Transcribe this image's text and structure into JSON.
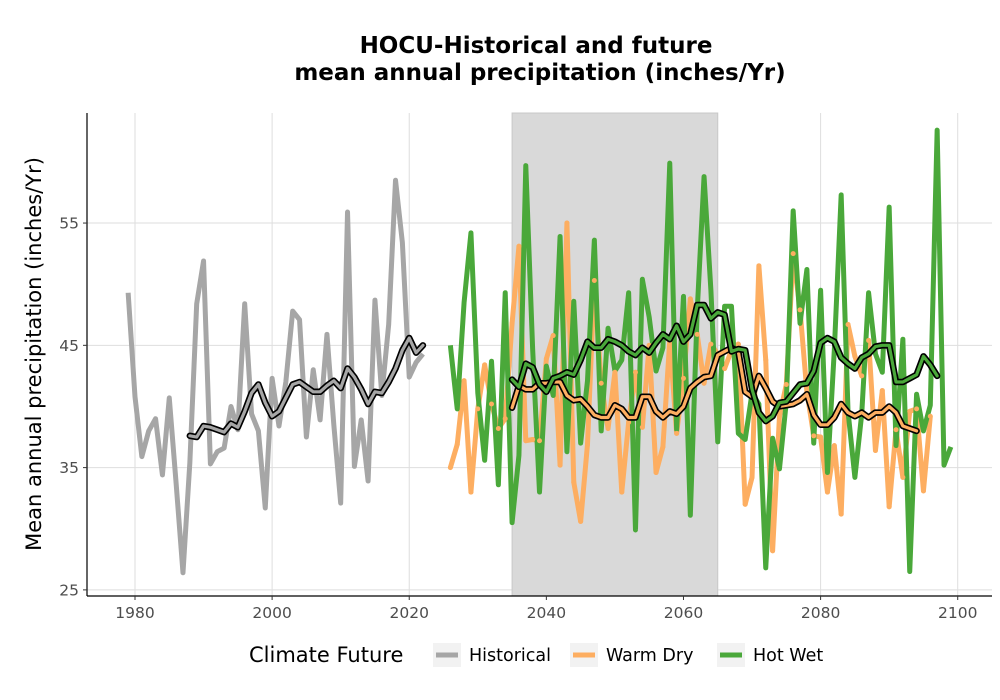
{
  "chart_data": {
    "type": "line",
    "title": "HOCU-Historical and future\nmean annual precipitation (inches/Yr)",
    "xlabel": "",
    "ylabel": "Mean annual precipitation (inches/Yr)",
    "xlim": [
      1973,
      2105
    ],
    "ylim": [
      24.5,
      64
    ],
    "x_ticks": [
      1980,
      2000,
      2020,
      2040,
      2060,
      2080,
      2100
    ],
    "y_ticks": [
      25,
      35,
      45,
      55
    ],
    "grid": true,
    "shaded_region": {
      "x_start": 2035,
      "x_end": 2065,
      "color": "#d9d9d9"
    },
    "legend": {
      "title": "Climate Future",
      "position": "bottom",
      "entries": [
        {
          "label": "Historical",
          "color": "#a6a6a6"
        },
        {
          "label": "Warm Dry",
          "color": "#fdae61"
        },
        {
          "label": "Hot Wet",
          "color": "#4aa83a"
        }
      ]
    },
    "series": [
      {
        "name": "Historical",
        "color": "#a6a6a6",
        "x_start": 1979,
        "values": [
          49.3,
          40.8,
          35.9,
          38.0,
          39.0,
          34.4,
          40.7,
          33.7,
          26.4,
          35.4,
          48.4,
          51.9,
          35.3,
          36.3,
          36.6,
          40.0,
          38.1,
          48.4,
          39.4,
          38.0,
          31.7,
          42.3,
          38.4,
          42.0,
          47.8,
          47.1,
          37.5,
          43.0,
          38.9,
          45.9,
          38.5,
          32.1,
          55.9,
          35.1,
          38.9,
          33.9,
          48.7,
          40.9,
          46.7,
          58.5,
          53.4,
          42.4,
          43.6,
          44.3
        ]
      },
      {
        "name": "Historical (rolling mean)",
        "color": "#a6a6a6",
        "smoothed": true,
        "x_start": 1988,
        "values": [
          37.6,
          37.5,
          38.4,
          38.3,
          38.1,
          37.9,
          38.6,
          38.3,
          39.6,
          41.1,
          41.8,
          40.3,
          39.2,
          39.6,
          40.7,
          41.8,
          42.0,
          41.6,
          41.2,
          41.2,
          41.7,
          42.1,
          41.5,
          43.1,
          42.4,
          41.4,
          40.2,
          41.2,
          41.1,
          42.0,
          43.1,
          44.6,
          45.6,
          44.4,
          45.0
        ]
      },
      {
        "name": "Warm Dry",
        "color": "#fdae61",
        "x_start": 2026,
        "values": [
          35.0,
          36.9,
          42.1,
          33.0,
          39.8,
          43.4,
          40.2,
          38.2,
          39.0,
          46.8,
          53.1,
          37.2,
          37.3,
          37.2,
          43.9,
          45.8,
          35.2,
          55.0,
          33.8,
          30.6,
          36.9,
          50.3,
          41.9,
          38.2,
          42.8,
          33.0,
          38.7,
          42.8,
          38.3,
          45.0,
          34.6,
          36.7,
          45.4,
          37.8,
          42.3,
          48.8,
          45.9,
          41.9,
          45.1,
          44.3,
          43.1,
          44.6,
          45.1,
          32.0,
          34.2,
          51.5,
          43.8,
          28.2,
          39.2,
          41.8,
          52.5,
          47.9,
          41.2,
          37.6,
          37.5,
          33.0,
          36.8,
          31.2,
          46.7,
          44.1,
          42.5,
          45.4,
          36.4,
          41.3,
          31.8,
          38.1,
          34.2,
          39.6,
          39.8,
          33.1,
          39.2
        ]
      },
      {
        "name": "Warm Dry (rolling mean)",
        "color": "#fdae61",
        "smoothed": true,
        "x_start": 2035,
        "values": [
          39.9,
          41.7,
          41.4,
          41.4,
          41.9,
          41.9,
          42.0,
          42.0,
          40.9,
          40.5,
          40.6,
          40.0,
          39.3,
          39.1,
          39.1,
          40.1,
          39.8,
          39.1,
          39.1,
          40.8,
          40.8,
          39.6,
          39.1,
          39.6,
          39.4,
          40.0,
          41.5,
          42.0,
          42.4,
          42.5,
          44.2,
          44.5,
          44.8,
          44.5,
          41.2,
          40.8,
          42.5,
          41.5,
          40.4,
          40.0,
          40.1,
          40.2,
          40.5,
          41.0,
          39.3,
          38.5,
          38.5,
          39.1,
          40.2,
          39.5,
          39.2,
          39.5,
          39.1,
          39.5,
          39.5,
          40.0,
          39.5,
          38.4,
          38.2,
          38.0
        ]
      },
      {
        "name": "Hot Wet",
        "color": "#4aa83a",
        "x_start": 2026,
        "values": [
          45.0,
          39.8,
          48.5,
          54.2,
          41.1,
          35.6,
          43.7,
          33.6,
          49.3,
          30.5,
          36.0,
          59.7,
          44.7,
          33.0,
          43.3,
          40.9,
          53.9,
          36.3,
          48.6,
          37.0,
          42.1,
          53.6,
          38.0,
          46.4,
          42.9,
          43.8,
          49.3,
          29.9,
          50.4,
          47.3,
          42.9,
          44.8,
          59.9,
          38.1,
          49.0,
          31.1,
          47.8,
          58.8,
          49.5,
          37.1,
          48.2,
          48.2,
          37.8,
          37.3,
          41.1,
          40.2,
          26.8,
          37.4,
          34.9,
          40.4,
          56.0,
          46.8,
          51.2,
          37.0,
          49.5,
          34.6,
          44.6,
          57.3,
          39.6,
          34.2,
          39.4,
          49.3,
          44.3,
          42.8,
          56.3,
          36.8,
          45.5,
          26.5,
          41.0,
          38.0,
          40.1,
          62.6,
          35.2,
          36.7
        ]
      },
      {
        "name": "Hot Wet (rolling mean)",
        "color": "#4aa83a",
        "smoothed": true,
        "x_start": 2035,
        "values": [
          42.2,
          41.6,
          43.5,
          43.2,
          41.8,
          41.2,
          42.3,
          42.5,
          42.8,
          42.6,
          43.8,
          45.3,
          44.8,
          44.8,
          45.5,
          45.3,
          45.0,
          44.5,
          44.2,
          44.8,
          44.4,
          45.2,
          45.9,
          45.5,
          46.6,
          45.3,
          45.9,
          48.3,
          48.3,
          47.2,
          47.7,
          47.5,
          44.5,
          44.7,
          44.6,
          41.4,
          39.5,
          38.8,
          39.2,
          40.3,
          40.4,
          41.1,
          41.8,
          41.9,
          42.9,
          45.2,
          45.6,
          45.3,
          44.0,
          43.5,
          43.1,
          44.0,
          44.3,
          44.9,
          45.0,
          45.0,
          42.0,
          42.0,
          42.3,
          42.6,
          44.1,
          43.4,
          42.5
        ]
      }
    ]
  }
}
